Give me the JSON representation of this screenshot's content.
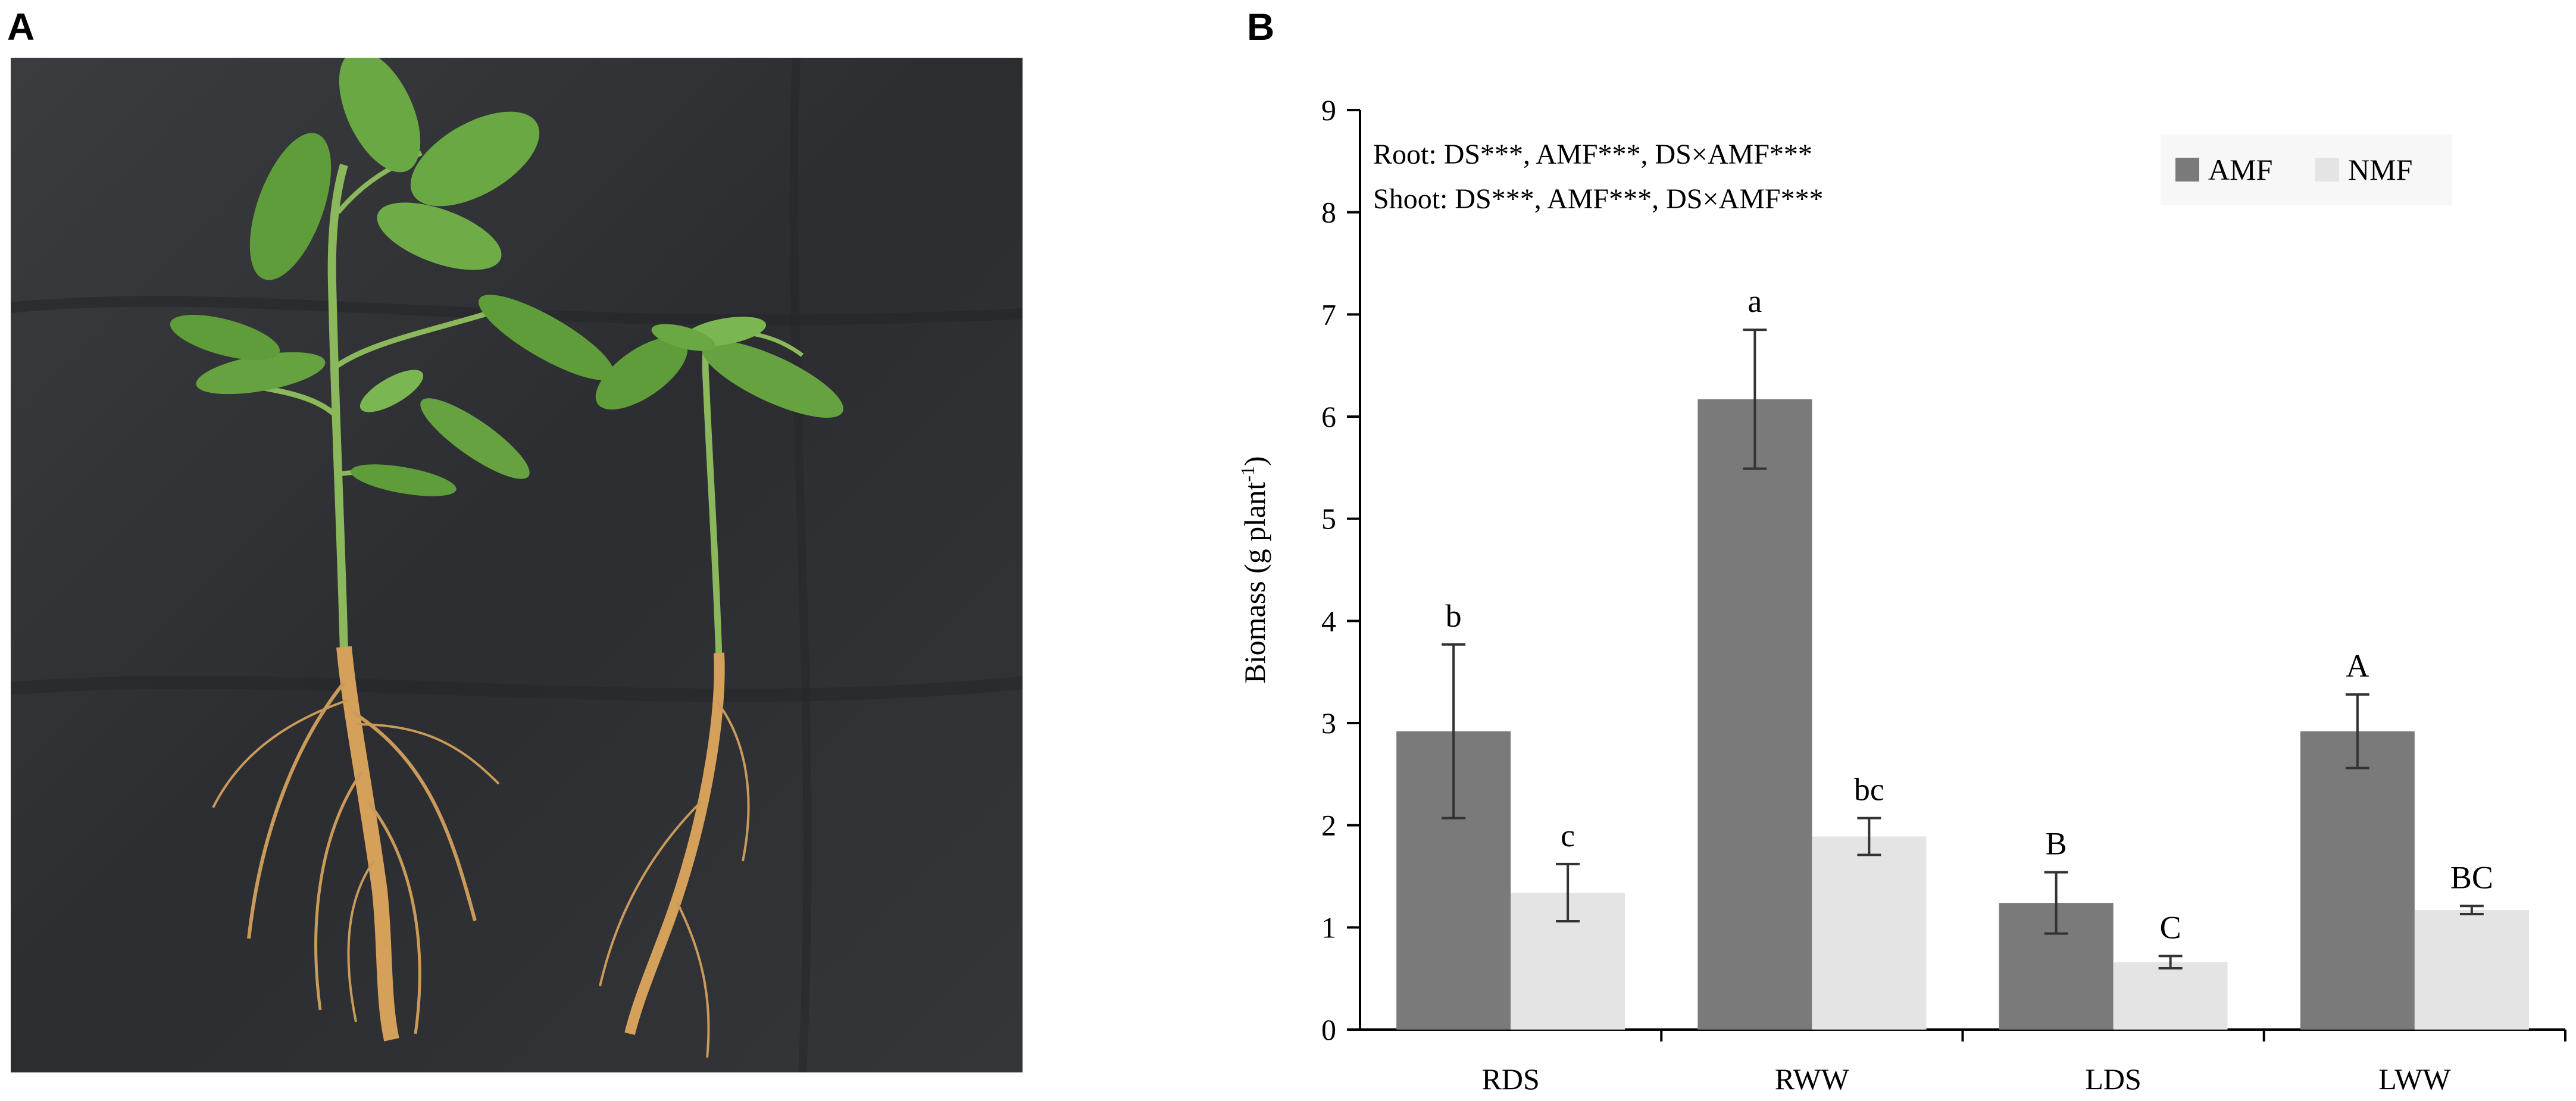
{
  "panels": {
    "a_label": "A",
    "b_label": "B"
  },
  "photo": {
    "description_icon": "plant-seedlings-photo-icon",
    "background_color": "#2d2f33",
    "leaf_color": "#5f9c3a",
    "root_color": "#c79a55"
  },
  "chart_data": {
    "type": "bar",
    "categories": [
      "RDS",
      "RWW",
      "LDS",
      "LWW"
    ],
    "series": [
      {
        "name": "AMF",
        "color": "#7a7a7a",
        "values": [
          2.92,
          6.17,
          1.24,
          2.92
        ],
        "errors": [
          0.85,
          0.68,
          0.3,
          0.36
        ],
        "letters": [
          "b",
          "a",
          "B",
          "A"
        ]
      },
      {
        "name": "NMF",
        "color": "#e4e4e4",
        "values": [
          1.34,
          1.89,
          0.66,
          1.17
        ],
        "errors": [
          0.28,
          0.18,
          0.06,
          0.04
        ],
        "letters": [
          "c",
          "bc",
          "C",
          "BC"
        ]
      }
    ],
    "ylabel": "Biomass (g plant",
    "ylabel_sup": "-1",
    "ylabel_close": ")",
    "ylim": [
      0,
      9
    ],
    "yticks": [
      "0",
      "1",
      "2",
      "3",
      "4",
      "5",
      "6",
      "7",
      "8",
      "9"
    ],
    "annotations": [
      "Root: DS***,   AMF***,   DS×AMF***",
      "Shoot: DS***, AMF***, DS×AMF***"
    ],
    "legend_position": "top-right",
    "grid": false
  }
}
